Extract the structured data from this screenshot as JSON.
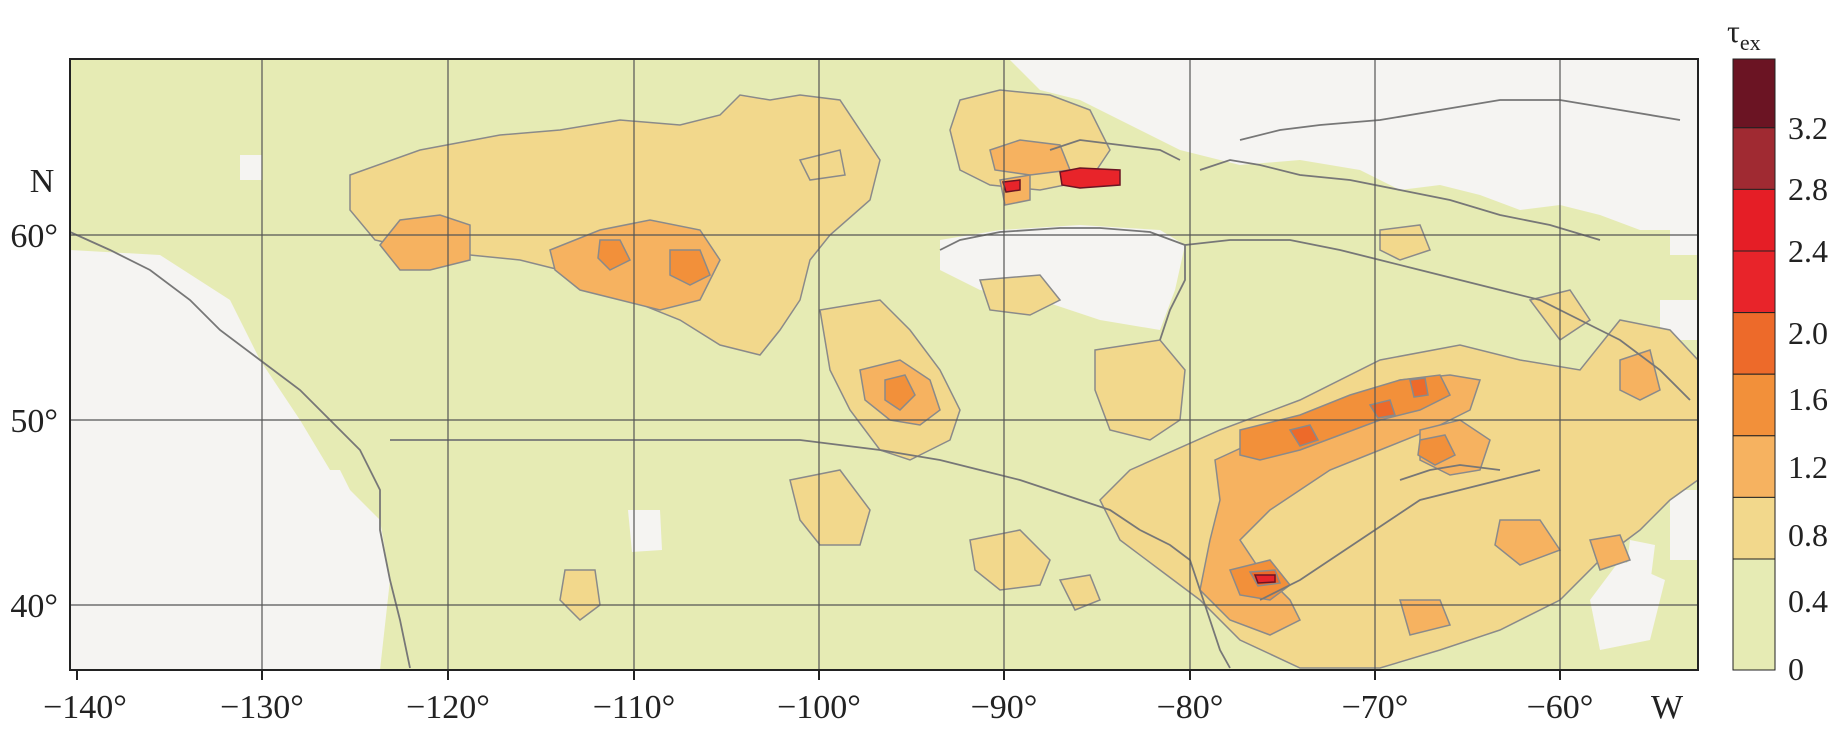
{
  "map": {
    "lat_labels": [
      "60°",
      "50°",
      "40°"
    ],
    "lat_hemisphere": "N",
    "lon_labels": [
      "−140°",
      "−130°",
      "−120°",
      "−110°",
      "−100°",
      "−90°",
      "−80°",
      "−70°",
      "−60°"
    ],
    "lon_hemisphere": "W",
    "lon_range": [
      -140,
      -52
    ],
    "lat_range": [
      37,
      68.5
    ],
    "gridlines": true
  },
  "colorbar": {
    "symbol": "τ",
    "subscript": "ex",
    "levels": [
      "3.2",
      "2.8",
      "2.4",
      "2.0",
      "1.6",
      "1.2",
      "0.8",
      "0.4",
      "0"
    ],
    "bins": [
      {
        "range": [
          0,
          0.4
        ],
        "color": "#e6ebb4"
      },
      {
        "range": [
          0.4,
          0.8
        ],
        "color": "#f2d88c"
      },
      {
        "range": [
          0.8,
          1.2
        ],
        "color": "#f6b260"
      },
      {
        "range": [
          1.2,
          1.6
        ],
        "color": "#f2903a"
      },
      {
        "range": [
          1.6,
          2.0
        ],
        "color": "#ed6a2a"
      },
      {
        "range": [
          2.0,
          2.4
        ],
        "color": "#e8242a"
      },
      {
        "range": [
          2.4,
          2.8
        ],
        "color": "#e51e26"
      },
      {
        "range": [
          2.8,
          3.2
        ],
        "color": "#a02a32"
      },
      {
        "range": [
          3.2,
          3.6
        ],
        "color": "#6b1423"
      }
    ]
  },
  "colors": {
    "background_field": "#e6ebb4",
    "missing": "#f5f4f2",
    "grid": "#555555",
    "contour": "#8a8a8a",
    "coast": "#777777"
  }
}
